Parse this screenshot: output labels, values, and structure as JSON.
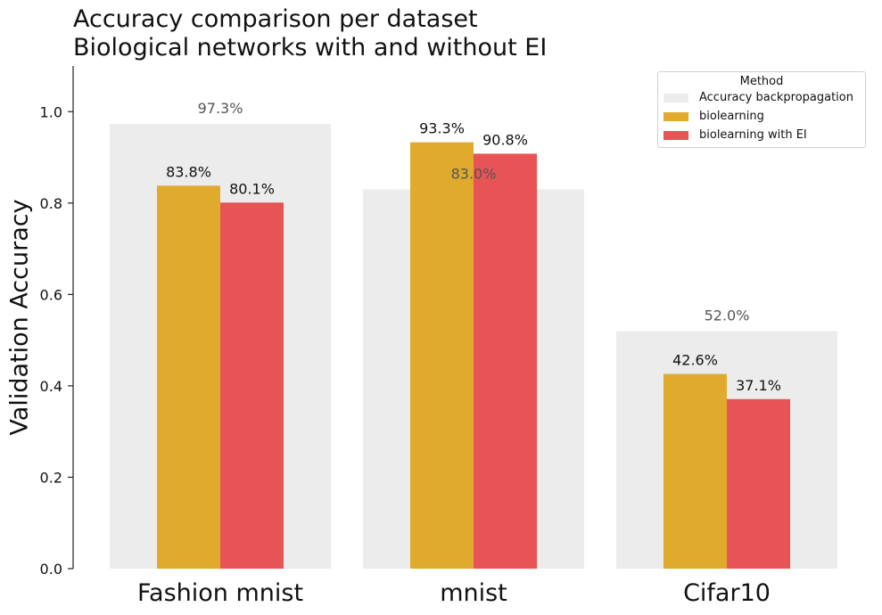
{
  "title_lines": [
    "Accuracy comparison per dataset",
    "Biological networks with and without EI"
  ],
  "legend": {
    "title": "Method",
    "items": [
      {
        "label": "Accuracy backpropagation",
        "color": "#ececec"
      },
      {
        "label": "biolearning",
        "color": "#e0aa2c"
      },
      {
        "label": "biolearning with EI",
        "color": "#e85355"
      }
    ]
  },
  "chart_data": {
    "type": "bar",
    "title": "Accuracy comparison per dataset\nBiological networks with and without EI",
    "xlabel": "",
    "ylabel": "Validation Accuracy",
    "ylim": [
      0,
      1.1
    ],
    "yticks": [
      0.0,
      0.2,
      0.4,
      0.6,
      0.8,
      1.0
    ],
    "ytick_labels": [
      "0.0",
      "0.2",
      "0.4",
      "0.6",
      "0.8",
      "1.0"
    ],
    "categories": [
      "Fashion mnist",
      "mnist",
      "Cifar10"
    ],
    "grid": false,
    "legend_position": "top-right",
    "background_series": {
      "name": "Accuracy backpropagation",
      "values": [
        0.973,
        0.83,
        0.52
      ],
      "labels": [
        "97.3%",
        "83.0%",
        "52.0%"
      ],
      "color": "#ececec",
      "label_color": "#555555"
    },
    "series": [
      {
        "name": "biolearning",
        "values": [
          0.838,
          0.933,
          0.426
        ],
        "labels": [
          "83.8%",
          "93.3%",
          "42.6%"
        ],
        "color": "#e0aa2c"
      },
      {
        "name": "biolearning with EI",
        "values": [
          0.801,
          0.908,
          0.371
        ],
        "labels": [
          "80.1%",
          "90.8%",
          "37.1%"
        ],
        "color": "#e85355"
      }
    ]
  }
}
